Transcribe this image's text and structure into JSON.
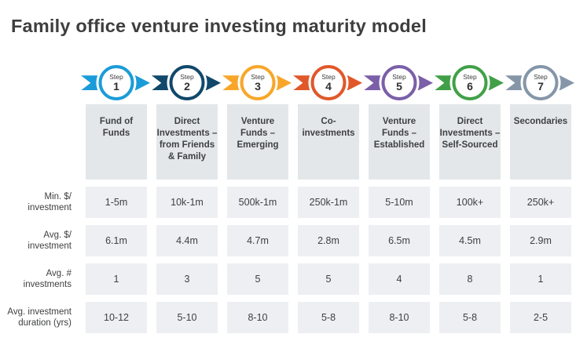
{
  "title": "Family office venture investing maturity model",
  "steps": [
    {
      "label": "Step",
      "number": "1",
      "color": "#1b9cd8",
      "header": "Fund of Funds"
    },
    {
      "label": "Step",
      "number": "2",
      "color": "#11486b",
      "header": "Direct Investments – from Friends & Family"
    },
    {
      "label": "Step",
      "number": "3",
      "color": "#f8a62a",
      "header": "Venture Funds – Emerging"
    },
    {
      "label": "Step",
      "number": "4",
      "color": "#e0582a",
      "header": "Co-investments"
    },
    {
      "label": "Step",
      "number": "5",
      "color": "#7b5fa9",
      "header": "Venture Funds – Established"
    },
    {
      "label": "Step",
      "number": "6",
      "color": "#41a047",
      "header": "Direct Investments – Self-Sourced"
    },
    {
      "label": "Step",
      "number": "7",
      "color": "#8596a8",
      "header": "Secondaries"
    }
  ],
  "rows": [
    {
      "label": "Min. $/ investment",
      "values": [
        "1-5m",
        "10k-1m",
        "500k-1m",
        "250k-1m",
        "5-10m",
        "100k+",
        "250k+"
      ]
    },
    {
      "label": "Avg. $/ investment",
      "values": [
        "6.1m",
        "4.4m",
        "4.7m",
        "2.8m",
        "6.5m",
        "4.5m",
        "2.9m"
      ]
    },
    {
      "label": "Avg. # investments",
      "values": [
        "1",
        "3",
        "5",
        "5",
        "4",
        "8",
        "1"
      ]
    },
    {
      "label": "Avg. investment duration (yrs)",
      "values": [
        "10-12",
        "5-10",
        "8-10",
        "5-8",
        "8-10",
        "5-8",
        "2-5"
      ]
    }
  ],
  "colors": {
    "title_text": "#3e3e3f",
    "header_box_bg": "#e3e7ea",
    "cell_bg": "#edeff2",
    "body_text": "#3f4041"
  }
}
